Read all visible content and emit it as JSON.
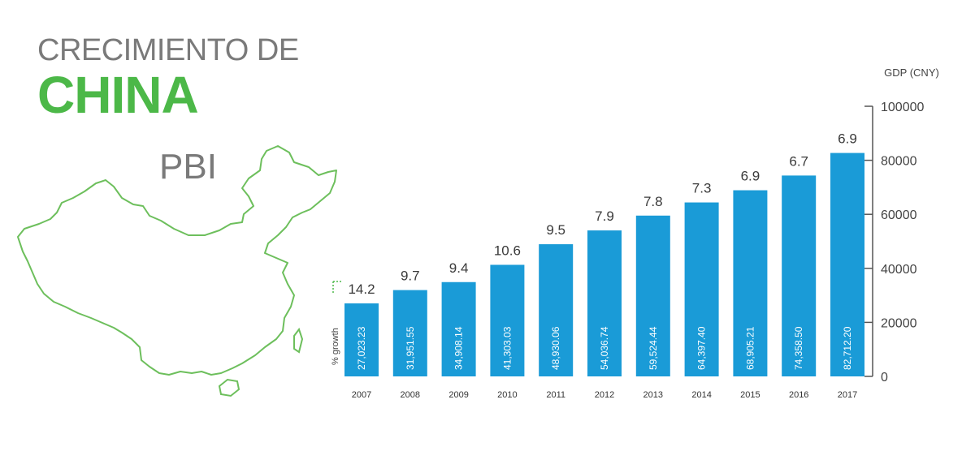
{
  "title": {
    "line1": "CRECIMIENTO DE",
    "line2": "CHINA",
    "line3": "PBI"
  },
  "colors": {
    "bar": "#1a9bd7",
    "title_green": "#4cb848",
    "title_gray": "#7a7a7a",
    "map_outline": "#6dbf5c",
    "axis": "#555555"
  },
  "icons": [
    "china-map-outline"
  ],
  "chart_data": {
    "type": "bar",
    "categories": [
      "2007",
      "2008",
      "2009",
      "2010",
      "2011",
      "2012",
      "2013",
      "2014",
      "2015",
      "2016",
      "2017"
    ],
    "values": [
      27023.23,
      31951.55,
      34908.14,
      41303.03,
      48930.06,
      54036.74,
      59524.44,
      64397.4,
      68905.21,
      74358.5,
      82712.2
    ],
    "bar_labels": [
      "27,023.23",
      "31,951.55",
      "34,908.14",
      "41,303.03",
      "48,930.06",
      "54,036.74",
      "59,524.44",
      "64,397.40",
      "68,905.21",
      "74,358.50",
      "82,712.20"
    ],
    "growth": [
      "14.2",
      "9.7",
      "9.4",
      "10.6",
      "9.5",
      "7.9",
      "7.8",
      "7.3",
      "6.9",
      "6.7",
      "6.9"
    ],
    "growth_label": "% growth",
    "ylabel": "GDP (CNY)",
    "ylim": [
      0,
      100000
    ],
    "yticks": [
      "0",
      "20000",
      "40000",
      "60000",
      "80000",
      "100000"
    ],
    "ytick_values": [
      0,
      20000,
      40000,
      60000,
      80000,
      100000
    ],
    "grid": false
  }
}
